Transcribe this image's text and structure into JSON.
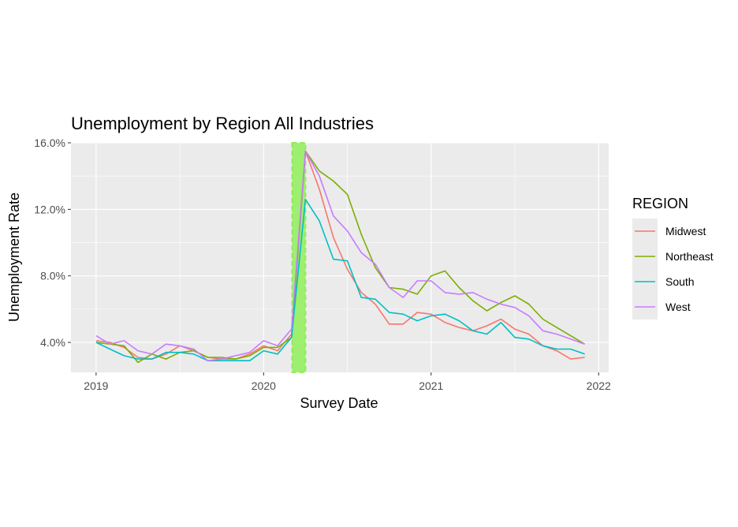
{
  "chart_data": {
    "type": "line",
    "title": "Unemployment by Region All Industries",
    "xlabel": "Survey Date",
    "ylabel": "Unemployment Rate",
    "x_ticks": [
      {
        "value": 2019,
        "label": "2019"
      },
      {
        "value": 2020,
        "label": "2020"
      },
      {
        "value": 2021,
        "label": "2021"
      },
      {
        "value": 2022,
        "label": "2022"
      }
    ],
    "y_ticks": [
      {
        "value": 4,
        "label": "4.0%"
      },
      {
        "value": 8,
        "label": "8.0%"
      },
      {
        "value": 12,
        "label": "12.0%"
      },
      {
        "value": 16,
        "label": "16.0%"
      }
    ],
    "xlim": [
      2018.85,
      2022.06
    ],
    "ylim": [
      2.2,
      16.0
    ],
    "highlight": {
      "x_start": 2020.17,
      "x_end": 2020.25,
      "color": "#90ee5a"
    },
    "legend": {
      "title": "REGION",
      "position": "right"
    },
    "x": [
      2019.0,
      2019.083,
      2019.167,
      2019.25,
      2019.333,
      2019.417,
      2019.5,
      2019.583,
      2019.667,
      2019.75,
      2019.833,
      2019.917,
      2020.0,
      2020.083,
      2020.167,
      2020.25,
      2020.333,
      2020.417,
      2020.5,
      2020.583,
      2020.667,
      2020.75,
      2020.833,
      2020.917,
      2021.0,
      2021.083,
      2021.167,
      2021.25,
      2021.333,
      2021.417,
      2021.5,
      2021.583,
      2021.667,
      2021.75,
      2021.833,
      2021.917
    ],
    "series": [
      {
        "name": "Midwest",
        "color": "#F8766D",
        "values": [
          4.1,
          4.0,
          3.7,
          3.1,
          3.0,
          3.3,
          3.8,
          3.5,
          3.1,
          3.0,
          3.0,
          3.3,
          3.8,
          3.5,
          4.5,
          15.5,
          13.2,
          10.3,
          8.4,
          7.0,
          6.3,
          5.1,
          5.1,
          5.8,
          5.7,
          5.2,
          4.9,
          4.7,
          5.0,
          5.4,
          4.8,
          4.5,
          3.8,
          3.5,
          3.0,
          3.1
        ]
      },
      {
        "name": "Northeast",
        "color": "#7CAE00",
        "values": [
          4.0,
          3.9,
          3.8,
          2.8,
          3.3,
          3.0,
          3.4,
          3.5,
          3.1,
          3.1,
          3.0,
          3.2,
          3.7,
          3.7,
          4.3,
          15.5,
          14.3,
          13.7,
          12.9,
          10.5,
          8.5,
          7.3,
          7.2,
          6.9,
          8.0,
          8.3,
          7.3,
          6.5,
          5.9,
          6.4,
          6.8,
          6.3,
          5.4,
          4.9,
          4.4,
          3.9
        ]
      },
      {
        "name": "South",
        "color": "#00BFC4",
        "values": [
          4.0,
          3.6,
          3.2,
          3.0,
          3.0,
          3.4,
          3.4,
          3.3,
          2.9,
          2.9,
          2.9,
          2.9,
          3.5,
          3.3,
          4.3,
          12.6,
          11.3,
          9.0,
          8.9,
          6.7,
          6.6,
          5.8,
          5.7,
          5.3,
          5.6,
          5.7,
          5.3,
          4.7,
          4.5,
          5.2,
          4.3,
          4.2,
          3.8,
          3.6,
          3.6,
          3.3
        ]
      },
      {
        "name": "West",
        "color": "#C77CFF",
        "values": [
          4.4,
          3.9,
          4.1,
          3.5,
          3.3,
          3.9,
          3.8,
          3.6,
          2.9,
          3.0,
          3.2,
          3.4,
          4.1,
          3.8,
          4.8,
          15.5,
          14.0,
          11.6,
          10.7,
          9.4,
          8.7,
          7.3,
          6.7,
          7.7,
          7.7,
          7.0,
          6.9,
          7.0,
          6.6,
          6.3,
          6.1,
          5.6,
          4.7,
          4.5,
          4.2,
          3.9
        ]
      }
    ]
  }
}
